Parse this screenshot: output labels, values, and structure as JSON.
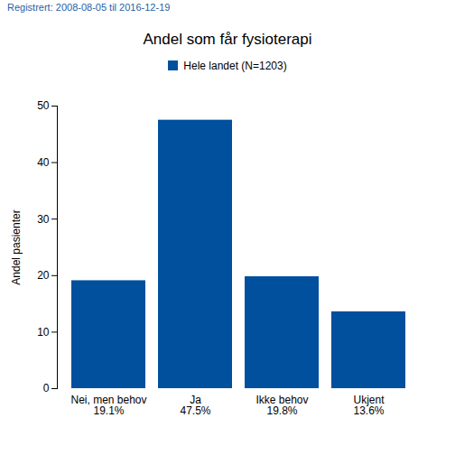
{
  "chart_data": {
    "type": "bar",
    "subtitle": "Registrert: 2008-08-05 til 2016-12-19",
    "title": "Andel som får fysioterapi",
    "y_label": "Andel pasienter",
    "categories": [
      "Nei, men behov",
      "Ja",
      "Ikke behov",
      "Ukjent"
    ],
    "series": [
      {
        "name": "Hele landet (N=1203)",
        "color": "#00509e",
        "values": [
          19.1,
          47.5,
          19.8,
          13.6
        ],
        "value_labels": [
          "19.1%",
          "47.5%",
          "19.8%",
          "13.6%"
        ]
      }
    ],
    "ylim": [
      0,
      50
    ],
    "yticks": [
      0,
      10,
      20,
      30,
      40,
      50
    ],
    "grid": false,
    "legend": "top",
    "data_labels": true
  }
}
